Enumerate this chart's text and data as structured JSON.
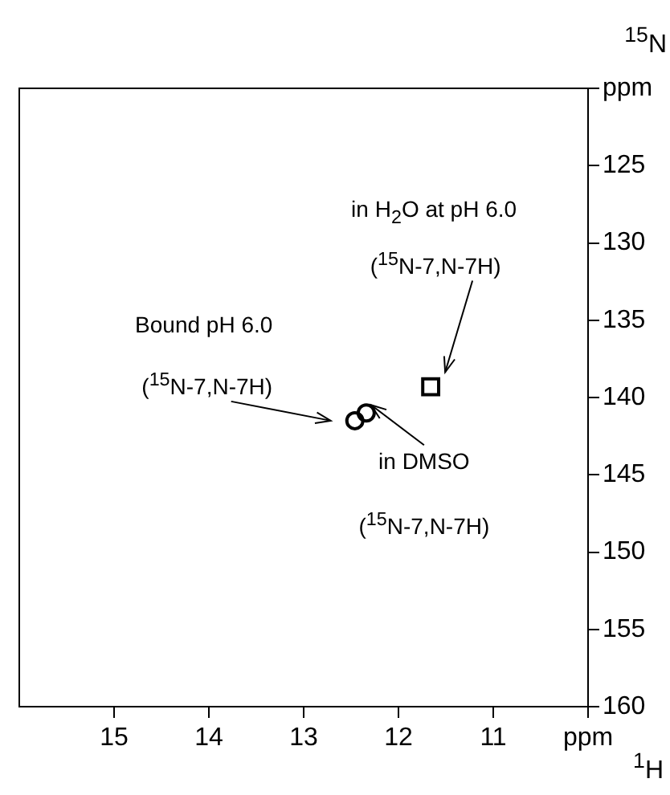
{
  "chart_data": {
    "type": "scatter",
    "xlabel": "$^{1}$H",
    "ylabel": "$^{15}$N",
    "xlim": [
      16,
      10
    ],
    "ylim": [
      160,
      120
    ],
    "xticks": [
      15,
      14,
      13,
      12,
      11,
      {
        "value": 10,
        "label": "ppm"
      }
    ],
    "yticks": [
      {
        "value": 120,
        "label": "ppm"
      },
      125,
      130,
      135,
      140,
      145,
      150,
      155,
      160
    ],
    "grid": false,
    "legend": false,
    "series": [
      {
        "color": "#000000",
        "marker": "circle",
        "x": [
          12.46
        ],
        "values": [
          141.5
        ]
      },
      {
        "color": "#000000",
        "marker": "circle",
        "x": [
          12.34
        ],
        "values": [
          141.0
        ]
      },
      {
        "color": "#000000",
        "marker": "square",
        "x": [
          11.66
        ],
        "values": [
          139.3
        ]
      }
    ],
    "annotations": [
      "Bound pH 6.0",
      "($^{15}$N-7,N-7H)",
      "in H$_{2}$O at pH 6.0",
      "($^{15}$N-7,N-7H)",
      {
        "text": "in DMSO",
        "x": 12.34,
        "y": 141.0
      },
      "($^{15}$N-7,N-7H)"
    ]
  }
}
